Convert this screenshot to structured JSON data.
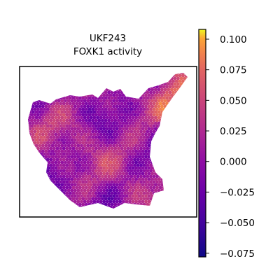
{
  "chart_data": {
    "type": "heatmap",
    "title": [
      "UKF243",
      "FOXK1 activity"
    ],
    "xlabel": "",
    "ylabel": "",
    "colormap": "plasma",
    "colorbar": {
      "range": [
        -0.078,
        0.108
      ],
      "ticks": [
        0.1,
        0.075,
        0.05,
        0.025,
        0.0,
        -0.025,
        -0.05,
        -0.075
      ],
      "tick_labels": [
        "0.100",
        "0.075",
        "0.050",
        "0.025",
        "0.000",
        "−0.025",
        "−0.050",
        "−0.075"
      ]
    },
    "frame": true,
    "spot_values_note": "spatial spot activity values approx. between -0.075 and 0.10"
  }
}
